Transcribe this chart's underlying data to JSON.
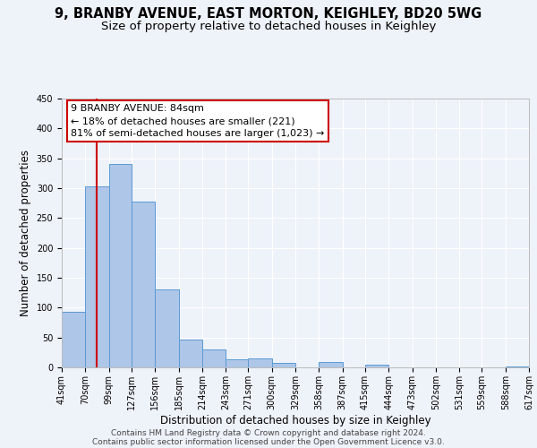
{
  "title": "9, BRANBY AVENUE, EAST MORTON, KEIGHLEY, BD20 5WG",
  "subtitle": "Size of property relative to detached houses in Keighley",
  "xlabel": "Distribution of detached houses by size in Keighley",
  "ylabel": "Number of detached properties",
  "footnote1": "Contains HM Land Registry data © Crown copyright and database right 2024.",
  "footnote2": "Contains public sector information licensed under the Open Government Licence v3.0.",
  "bins": [
    41,
    70,
    99,
    127,
    156,
    185,
    214,
    243,
    271,
    300,
    329,
    358,
    387,
    415,
    444,
    473,
    502,
    531,
    559,
    588,
    617
  ],
  "counts": [
    93,
    303,
    340,
    278,
    131,
    47,
    30,
    13,
    15,
    7,
    0,
    9,
    0,
    5,
    0,
    0,
    0,
    0,
    0,
    2
  ],
  "tick_labels": [
    "41sqm",
    "70sqm",
    "99sqm",
    "127sqm",
    "156sqm",
    "185sqm",
    "214sqm",
    "243sqm",
    "271sqm",
    "300sqm",
    "329sqm",
    "358sqm",
    "387sqm",
    "415sqm",
    "444sqm",
    "473sqm",
    "502sqm",
    "531sqm",
    "559sqm",
    "588sqm",
    "617sqm"
  ],
  "bar_color": "#aec6e8",
  "bar_edge_color": "#5b9bd5",
  "vline_x": 84,
  "vline_color": "#cc0000",
  "annotation_box_text": "9 BRANBY AVENUE: 84sqm\n← 18% of detached houses are smaller (221)\n81% of semi-detached houses are larger (1,023) →",
  "annotation_box_color": "#cc0000",
  "annotation_text_color": "#000000",
  "ylim": [
    0,
    450
  ],
  "yticks": [
    0,
    50,
    100,
    150,
    200,
    250,
    300,
    350,
    400,
    450
  ],
  "background_color": "#eef2f9",
  "grid_color": "#ffffff",
  "title_fontsize": 10.5,
  "subtitle_fontsize": 9.5,
  "axis_label_fontsize": 8.5,
  "tick_fontsize": 7,
  "footnote_fontsize": 6.5,
  "annotation_fontsize": 8
}
